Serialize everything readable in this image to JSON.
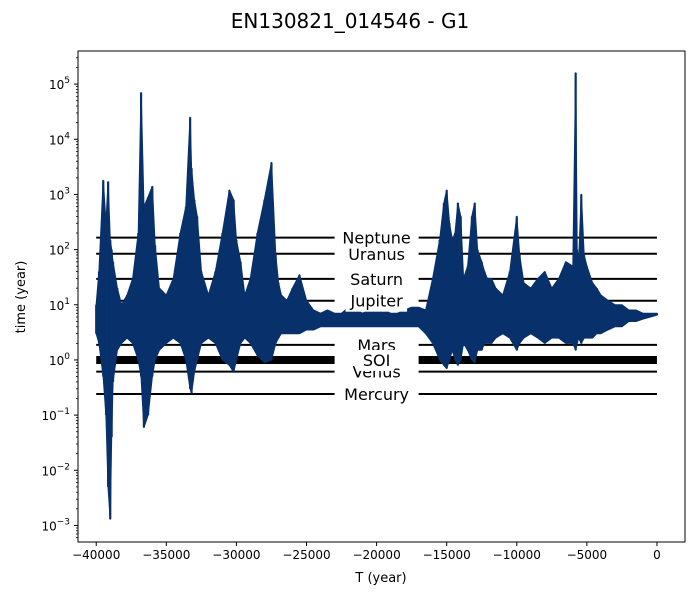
{
  "chart_data": {
    "type": "line",
    "title": "EN130821_014546 - G1",
    "xlabel": "T (year)",
    "ylabel": "time (year)",
    "xlim": [
      -41300,
      2000
    ],
    "ylim_log10": [
      -3.3,
      5.6
    ],
    "y_scale": "log",
    "grid": false,
    "colors": {
      "series": "#08306b",
      "reference_lines": "#000000"
    },
    "x_ticks": [
      -40000,
      -35000,
      -30000,
      -25000,
      -20000,
      -15000,
      -10000,
      -5000,
      0
    ],
    "x_tick_labels": [
      "−40000",
      "−35000",
      "−30000",
      "−25000",
      "−20000",
      "−15000",
      "−10000",
      "−5000",
      "0"
    ],
    "y_ticks": [
      {
        "exp": -3,
        "base": "10",
        "power": "−3"
      },
      {
        "exp": -2,
        "base": "10",
        "power": "−2"
      },
      {
        "exp": -1,
        "base": "10",
        "power": "−1"
      },
      {
        "exp": 0,
        "base": "10",
        "power": "0"
      },
      {
        "exp": 1,
        "base": "10",
        "power": "1"
      },
      {
        "exp": 2,
        "base": "10",
        "power": "2"
      },
      {
        "exp": 3,
        "base": "10",
        "power": "3"
      },
      {
        "exp": 4,
        "base": "10",
        "power": "4"
      },
      {
        "exp": 5,
        "base": "10",
        "power": "5"
      }
    ],
    "reference_lines": [
      {
        "label": "Mercury",
        "y": 0.241,
        "thick": false
      },
      {
        "label": "Venus",
        "y": 0.615,
        "thick": false
      },
      {
        "label": "SOI",
        "y": 1.0,
        "thick": true
      },
      {
        "label": "Mars",
        "y": 1.88,
        "thick": false
      },
      {
        "label": "Jupiter",
        "y": 11.86,
        "thick": false
      },
      {
        "label": "Saturn",
        "y": 29.46,
        "thick": false
      },
      {
        "label": "Uranus",
        "y": 84.0,
        "thick": false
      },
      {
        "label": "Neptune",
        "y": 164.8,
        "thick": false
      }
    ],
    "series": [
      {
        "x": [
          -40000,
          -39800,
          -39500,
          -39300,
          -39150,
          -39000,
          -38900,
          -38800,
          -38500,
          -38200,
          -37800,
          -37400,
          -37000,
          -36800,
          -36600,
          -36300,
          -36000,
          -35800,
          -35500,
          -35000,
          -34500,
          -34000,
          -33600,
          -33300,
          -33200,
          -33000,
          -32800,
          -32500,
          -32000,
          -31500,
          -31000,
          -30500,
          -30200,
          -30000,
          -29700,
          -29400,
          -29000,
          -28500,
          -28000,
          -27500,
          -27200,
          -27000,
          -26800,
          -26400,
          -26000,
          -25500,
          -25000,
          -24500,
          -24000,
          -23500,
          -23000,
          -22500,
          -22000,
          -21500,
          -21000,
          -20500,
          -20000,
          -19500,
          -19000,
          -18500,
          -18000,
          -17500,
          -17000,
          -16500,
          -16000,
          -15500,
          -15200,
          -15000,
          -14800,
          -14600,
          -14400,
          -14200,
          -14000,
          -13800,
          -13500,
          -13200,
          -13000,
          -12800,
          -12500,
          -12300,
          -12100,
          -11800,
          -11500,
          -11000,
          -10500,
          -10000,
          -9800,
          -9500,
          -9000,
          -8500,
          -8000,
          -7500,
          -7000,
          -6500,
          -6000,
          -5800,
          -5700,
          -5600,
          -5400,
          -5200,
          -5000,
          -4600,
          -4300,
          -4000,
          -3500,
          -3000,
          -2500,
          -2000,
          -1500,
          -1000,
          -500,
          0
        ],
        "y_high": [
          10,
          40,
          1800,
          300,
          1700,
          150,
          100,
          60,
          20,
          10,
          15,
          30,
          200,
          70000,
          600,
          900,
          1400,
          120,
          20,
          15,
          30,
          200,
          600,
          25000,
          3000,
          800,
          400,
          40,
          15,
          40,
          200,
          1200,
          800,
          150,
          60,
          15,
          30,
          200,
          800,
          3800,
          80,
          25,
          15,
          12,
          20,
          35,
          12,
          8,
          7,
          8,
          7,
          7,
          9,
          8,
          7,
          8,
          9,
          8,
          7,
          7,
          8,
          9,
          9,
          8,
          30,
          150,
          700,
          1200,
          300,
          150,
          200,
          700,
          400,
          30,
          50,
          400,
          700,
          100,
          60,
          40,
          30,
          30,
          20,
          15,
          40,
          400,
          80,
          25,
          20,
          30,
          40,
          20,
          30,
          60,
          50,
          160000,
          100,
          50,
          1000,
          80,
          50,
          25,
          20,
          15,
          12,
          10,
          10,
          8,
          8,
          7,
          7,
          7
        ],
        "y_low": [
          3,
          2,
          0.5,
          0.1,
          0.005,
          0.0013,
          0.04,
          0.4,
          1.5,
          2,
          2.5,
          2,
          1,
          0.5,
          0.06,
          0.1,
          0.5,
          1,
          1.5,
          2,
          2.5,
          2,
          1,
          0.3,
          0.25,
          0.6,
          1,
          2,
          2.5,
          2,
          1,
          0.8,
          0.6,
          1,
          2,
          2.5,
          2,
          1.2,
          0.9,
          1,
          2,
          2.5,
          3,
          3,
          3,
          3,
          3.5,
          3.5,
          4,
          4,
          4,
          4,
          4,
          4,
          4,
          4,
          4,
          4,
          4,
          4,
          4,
          4,
          4,
          3,
          2,
          1,
          0.8,
          0.7,
          1,
          1.5,
          1,
          0.8,
          1,
          2,
          1.5,
          1,
          0.9,
          1.5,
          1.5,
          2,
          2,
          2,
          2.5,
          3,
          2.5,
          1.5,
          2,
          2.5,
          3,
          2.5,
          2,
          2.5,
          2.5,
          2,
          2,
          1.5,
          2,
          2.5,
          2,
          2.5,
          2.5,
          2.5,
          3,
          3,
          3.5,
          4,
          4,
          5,
          5,
          5.5,
          6,
          6.5
        ]
      }
    ]
  }
}
